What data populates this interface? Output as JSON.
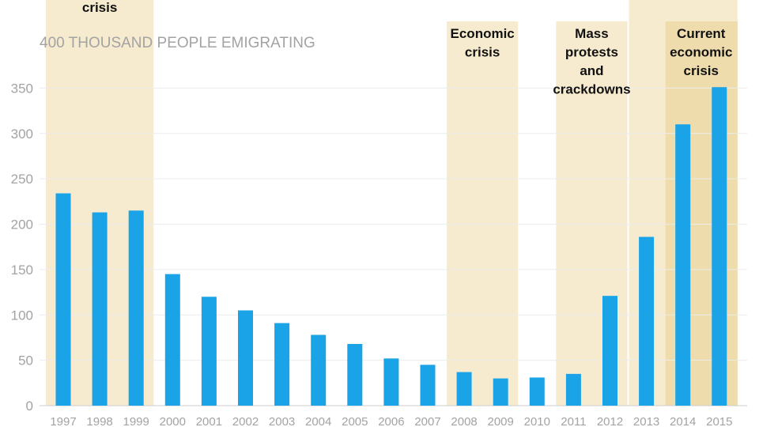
{
  "chart_data": {
    "type": "bar",
    "unit_label": "400 THOUSAND PEOPLE EMIGRATING",
    "categories": [
      "1997",
      "1998",
      "1999",
      "2000",
      "2001",
      "2002",
      "2003",
      "2004",
      "2005",
      "2006",
      "2007",
      "2008",
      "2009",
      "2010",
      "2011",
      "2012",
      "2013",
      "2014",
      "2015"
    ],
    "values": [
      234,
      213,
      215,
      145,
      120,
      105,
      91,
      78,
      68,
      52,
      45,
      37,
      30,
      31,
      35,
      121,
      186,
      310,
      351
    ],
    "ylim": [
      0,
      400
    ],
    "yticks": [
      0,
      50,
      100,
      150,
      200,
      250,
      300,
      350
    ],
    "grid": true,
    "bar_color": "#1aa3e6",
    "shade_color": "#f7ebcf",
    "shade_dark_color": "#eedcad",
    "annotations": [
      {
        "from": "1997",
        "to": "1999",
        "lines": [
          "crisis"
        ]
      },
      {
        "from": "2008",
        "to": "2009",
        "lines": [
          "Economic",
          "crisis"
        ]
      },
      {
        "from": "2011",
        "to": "2012",
        "lines": [
          "Mass",
          "protests",
          "and",
          "crackdowns"
        ]
      },
      {
        "from": "2014",
        "to": "2015",
        "lines": [
          "Current",
          "economic",
          "crisis"
        ]
      }
    ]
  }
}
